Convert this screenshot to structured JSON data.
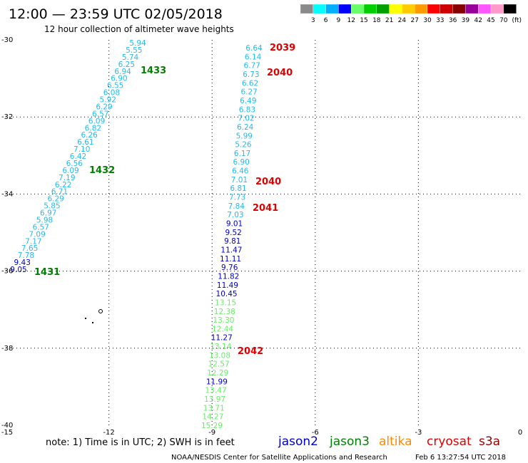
{
  "header": {
    "title": "12:00 — 23:59 UTC 02/05/2018",
    "subtitle": "12 hour collection of altimeter wave heights"
  },
  "colorbar": {
    "colors": [
      "#8a8a8a",
      "#00ffff",
      "#00b0ff",
      "#0000ff",
      "#66ff66",
      "#00d000",
      "#00a000",
      "#ffff00",
      "#ffcc00",
      "#ff9900",
      "#ff0000",
      "#cc0000",
      "#880000",
      "#990099",
      "#ff55ff",
      "#ff99cc",
      "#000000"
    ],
    "labels": [
      "3",
      "6",
      "9",
      "12",
      "15",
      "18",
      "21",
      "24",
      "27",
      "30",
      "33",
      "36",
      "39",
      "42",
      "45",
      "70"
    ],
    "unit": "(ft)"
  },
  "axes": {
    "x_ticks": [
      "-15",
      "-12",
      "-9",
      "-6",
      "-3",
      "0"
    ],
    "y_ticks": [
      "-30",
      "-32",
      "-34",
      "-36",
      "-38",
      "-40"
    ]
  },
  "time_labels": [
    {
      "text": "2039",
      "color": "#e00000"
    },
    {
      "text": "2040",
      "color": "#e00000"
    },
    {
      "text": "2040",
      "color": "#e00000"
    },
    {
      "text": "2041",
      "color": "#e00000"
    },
    {
      "text": "2042",
      "color": "#e00000"
    },
    {
      "text": "1433",
      "color": "#008000"
    },
    {
      "text": "1432",
      "color": "#008000"
    },
    {
      "text": "1431",
      "color": "#008000"
    }
  ],
  "track_left": [
    {
      "v": "5.94",
      "c": "#22bbee"
    },
    {
      "v": "5.55",
      "c": "#22bbee"
    },
    {
      "v": "5.74",
      "c": "#22bbee"
    },
    {
      "v": "6.25",
      "c": "#22bbee"
    },
    {
      "v": "6.94",
      "c": "#22bbee"
    },
    {
      "v": "6.90",
      "c": "#22bbee"
    },
    {
      "v": "6.55",
      "c": "#22bbee"
    },
    {
      "v": "6.08",
      "c": "#22bbee"
    },
    {
      "v": "5.92",
      "c": "#22bbee"
    },
    {
      "v": "6.29",
      "c": "#22bbee"
    },
    {
      "v": "6.57",
      "c": "#22bbee"
    },
    {
      "v": "6.09",
      "c": "#22bbee"
    },
    {
      "v": "6.82",
      "c": "#22bbee"
    },
    {
      "v": "6.26",
      "c": "#22bbee"
    },
    {
      "v": "6.61",
      "c": "#22bbee"
    },
    {
      "v": "7.10",
      "c": "#22bbee"
    },
    {
      "v": "6.42",
      "c": "#22bbee"
    },
    {
      "v": "6.56",
      "c": "#22bbee"
    },
    {
      "v": "6.09",
      "c": "#22bbee"
    },
    {
      "v": "7.19",
      "c": "#22bbee"
    },
    {
      "v": "6.22",
      "c": "#22bbee"
    },
    {
      "v": "6.71",
      "c": "#22bbee"
    },
    {
      "v": "6.29",
      "c": "#22bbee"
    },
    {
      "v": "5.85",
      "c": "#22bbee"
    },
    {
      "v": "6.97",
      "c": "#22bbee"
    },
    {
      "v": "5.98",
      "c": "#22bbee"
    },
    {
      "v": "6.57",
      "c": "#22bbee"
    },
    {
      "v": "7.09",
      "c": "#22bbee"
    },
    {
      "v": "7.17",
      "c": "#22bbee"
    },
    {
      "v": "7.65",
      "c": "#22bbee"
    },
    {
      "v": "7.78",
      "c": "#22bbee"
    },
    {
      "v": "9.43",
      "c": "#0000cc"
    },
    {
      "v": "9.05",
      "c": "#0000cc"
    }
  ],
  "track_right": [
    {
      "v": "6.64",
      "c": "#22bbee"
    },
    {
      "v": "6.14",
      "c": "#22bbee"
    },
    {
      "v": "6.77",
      "c": "#22bbee"
    },
    {
      "v": "6.73",
      "c": "#22bbee"
    },
    {
      "v": "6.62",
      "c": "#22bbee"
    },
    {
      "v": "6.27",
      "c": "#22bbee"
    },
    {
      "v": "6.49",
      "c": "#22bbee"
    },
    {
      "v": "6.83",
      "c": "#22bbee"
    },
    {
      "v": "7.02",
      "c": "#22bbee"
    },
    {
      "v": "6.24",
      "c": "#22bbee"
    },
    {
      "v": "5.99",
      "c": "#22bbee"
    },
    {
      "v": "5.26",
      "c": "#22bbee"
    },
    {
      "v": "6.17",
      "c": "#22bbee"
    },
    {
      "v": "6.90",
      "c": "#22bbee"
    },
    {
      "v": "6.46",
      "c": "#22bbee"
    },
    {
      "v": "7.01",
      "c": "#22bbee"
    },
    {
      "v": "6.81",
      "c": "#22bbee"
    },
    {
      "v": "7.73",
      "c": "#22bbee"
    },
    {
      "v": "7.84",
      "c": "#22bbee"
    },
    {
      "v": "7.03",
      "c": "#22bbee"
    },
    {
      "v": "9.01",
      "c": "#0000cc"
    },
    {
      "v": "9.52",
      "c": "#0000cc"
    },
    {
      "v": "9.81",
      "c": "#0000cc"
    },
    {
      "v": "11.47",
      "c": "#0000cc"
    },
    {
      "v": "11.11",
      "c": "#0000cc"
    },
    {
      "v": "9.76",
      "c": "#0000cc"
    },
    {
      "v": "11.82",
      "c": "#0000cc"
    },
    {
      "v": "11.49",
      "c": "#0000cc"
    },
    {
      "v": "10.45",
      "c": "#0000cc"
    },
    {
      "v": "13.15",
      "c": "#66ee66"
    },
    {
      "v": "12.38",
      "c": "#66ee66"
    },
    {
      "v": "13.30",
      "c": "#66ee66"
    },
    {
      "v": "12.44",
      "c": "#66ee66"
    },
    {
      "v": "11.27",
      "c": "#0000cc"
    },
    {
      "v": "13.14",
      "c": "#66ee66"
    },
    {
      "v": "13.08",
      "c": "#66ee66"
    },
    {
      "v": "12.57",
      "c": "#66ee66"
    },
    {
      "v": "12.29",
      "c": "#66ee66"
    },
    {
      "v": "11.99",
      "c": "#0000cc"
    },
    {
      "v": "13.47",
      "c": "#66ee66"
    },
    {
      "v": "13.97",
      "c": "#66ee66"
    },
    {
      "v": "13.71",
      "c": "#66ee66"
    },
    {
      "v": "14.27",
      "c": "#66ee66"
    },
    {
      "v": "15.29",
      "c": "#66ee66"
    }
  ],
  "footer": {
    "note": "note: 1) Time is in UTC; 2) SWH is in feet",
    "legend": [
      {
        "name": "jason2",
        "color": "#0000cc"
      },
      {
        "name": "jason3",
        "color": "#008000"
      },
      {
        "name": "altika",
        "color": "#ff8800"
      },
      {
        "name": "cryosat",
        "color": "#dd0000"
      },
      {
        "name": "s3a",
        "color": "#990000"
      }
    ],
    "credit": "NOAA/NESDIS Center for Satellite Applications and Research",
    "timestamp": "Feb  6 13:27:54 UTC 2018"
  }
}
